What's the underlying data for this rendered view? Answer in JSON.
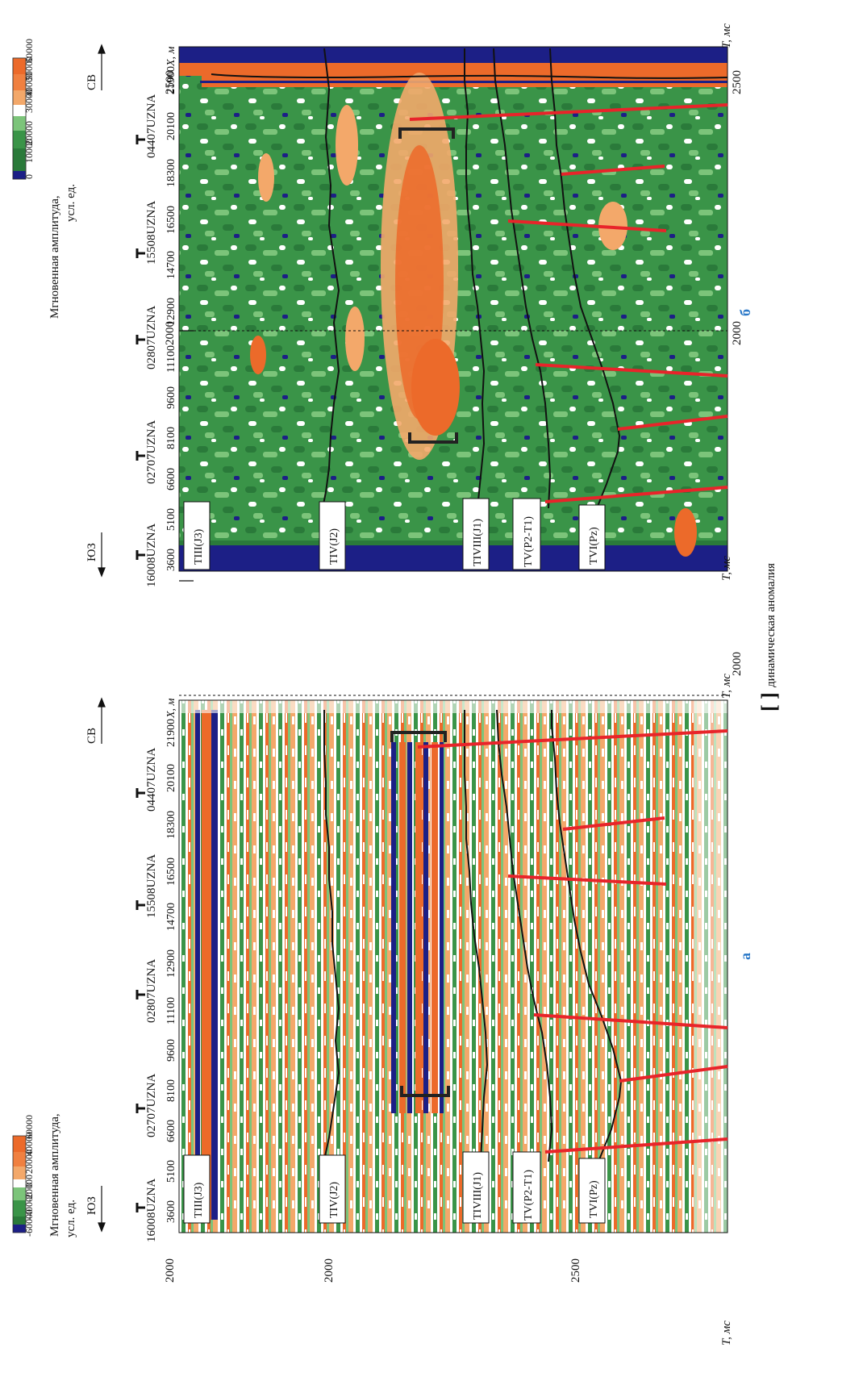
{
  "colors": {
    "dark_blue": "#1c1f86",
    "green": "#3a9448",
    "dark_green": "#2a7a3a",
    "light_green": "#7cc47a",
    "white": "#ffffff",
    "light_orange": "#f3a86a",
    "orange": "#ec6a2a",
    "red_fault": "#e8242a",
    "horizon": "#111111",
    "panel_label_blue": "#2a78c8"
  },
  "panels": [
    {
      "id": "a",
      "letter": "а",
      "colorbar": {
        "title_line1": "Мгновенная амплитуда,",
        "title_line2": "усл. ед.",
        "ticks": [
          "-60000",
          "-40000",
          "-20000",
          "0",
          "20000",
          "40000",
          "60000"
        ],
        "colors": [
          "#1c1f86",
          "#2a7a3a",
          "#3a9448",
          "#7cc47a",
          "#ffffff",
          "#f3c8a0",
          "#f3a86a",
          "#ec6a2a"
        ]
      },
      "t_ticks": [
        "2000",
        "2500"
      ],
      "t_axis_label": "T, мс",
      "anomaly": "seismic"
    },
    {
      "id": "b",
      "letter": "б",
      "colorbar": {
        "title_line1": "Мгновенная амплитуда,",
        "title_line2": "усл. ед.",
        "ticks": [
          "0",
          "10000",
          "20000",
          "30000",
          "40000",
          "50000",
          "60000"
        ],
        "colors": [
          "#1c1f86",
          "#2a7a3a",
          "#3a9448",
          "#7cc47a",
          "#ffffff",
          "#f3a86a",
          "#ec6a2a",
          "#e85a20"
        ]
      },
      "t_ticks": [
        "2000",
        "2500"
      ],
      "t_axis_label": "T, мс",
      "anomaly": "amplitude"
    }
  ],
  "x_axis": {
    "label": "X, м",
    "ticks": [
      "3600",
      "5100",
      "6600",
      "8100",
      "9600",
      "11100",
      "12900",
      "14700",
      "16500",
      "18300",
      "20100",
      "21900"
    ]
  },
  "wells": [
    "16008UZNA",
    "02707UZNA",
    "02807UZNA",
    "15508UZNA",
    "04407UZNA"
  ],
  "directions": {
    "sw": "ЮЗ",
    "ne": "СВ"
  },
  "horizons": [
    {
      "name": "TIII(J3)",
      "base": "T",
      "sub": "III",
      "paren": "(J",
      "paren_sub": "3",
      "close": ")"
    },
    {
      "name": "TIV(J2)",
      "base": "T",
      "sub": "IV",
      "paren": "(J",
      "paren_sub": "2",
      "close": ")"
    },
    {
      "name": "TIVIII(J1)",
      "base": "T",
      "sub": "IV",
      "sup": "III",
      "paren": "(J",
      "paren_sub": "1",
      "close": ")"
    },
    {
      "name": "TV(P2-T1)",
      "base": "T",
      "sub": "V",
      "paren": "(P",
      "paren_sub": "2",
      "mid": "-T",
      "mid_sub": "1",
      "close": ")"
    },
    {
      "name": "TVI(Pz)",
      "base": "T",
      "sub": "VI",
      "paren": "(Pz)",
      "close": ""
    }
  ],
  "legend": {
    "symbol": "[ ]",
    "text": "динамическая аномалия"
  }
}
